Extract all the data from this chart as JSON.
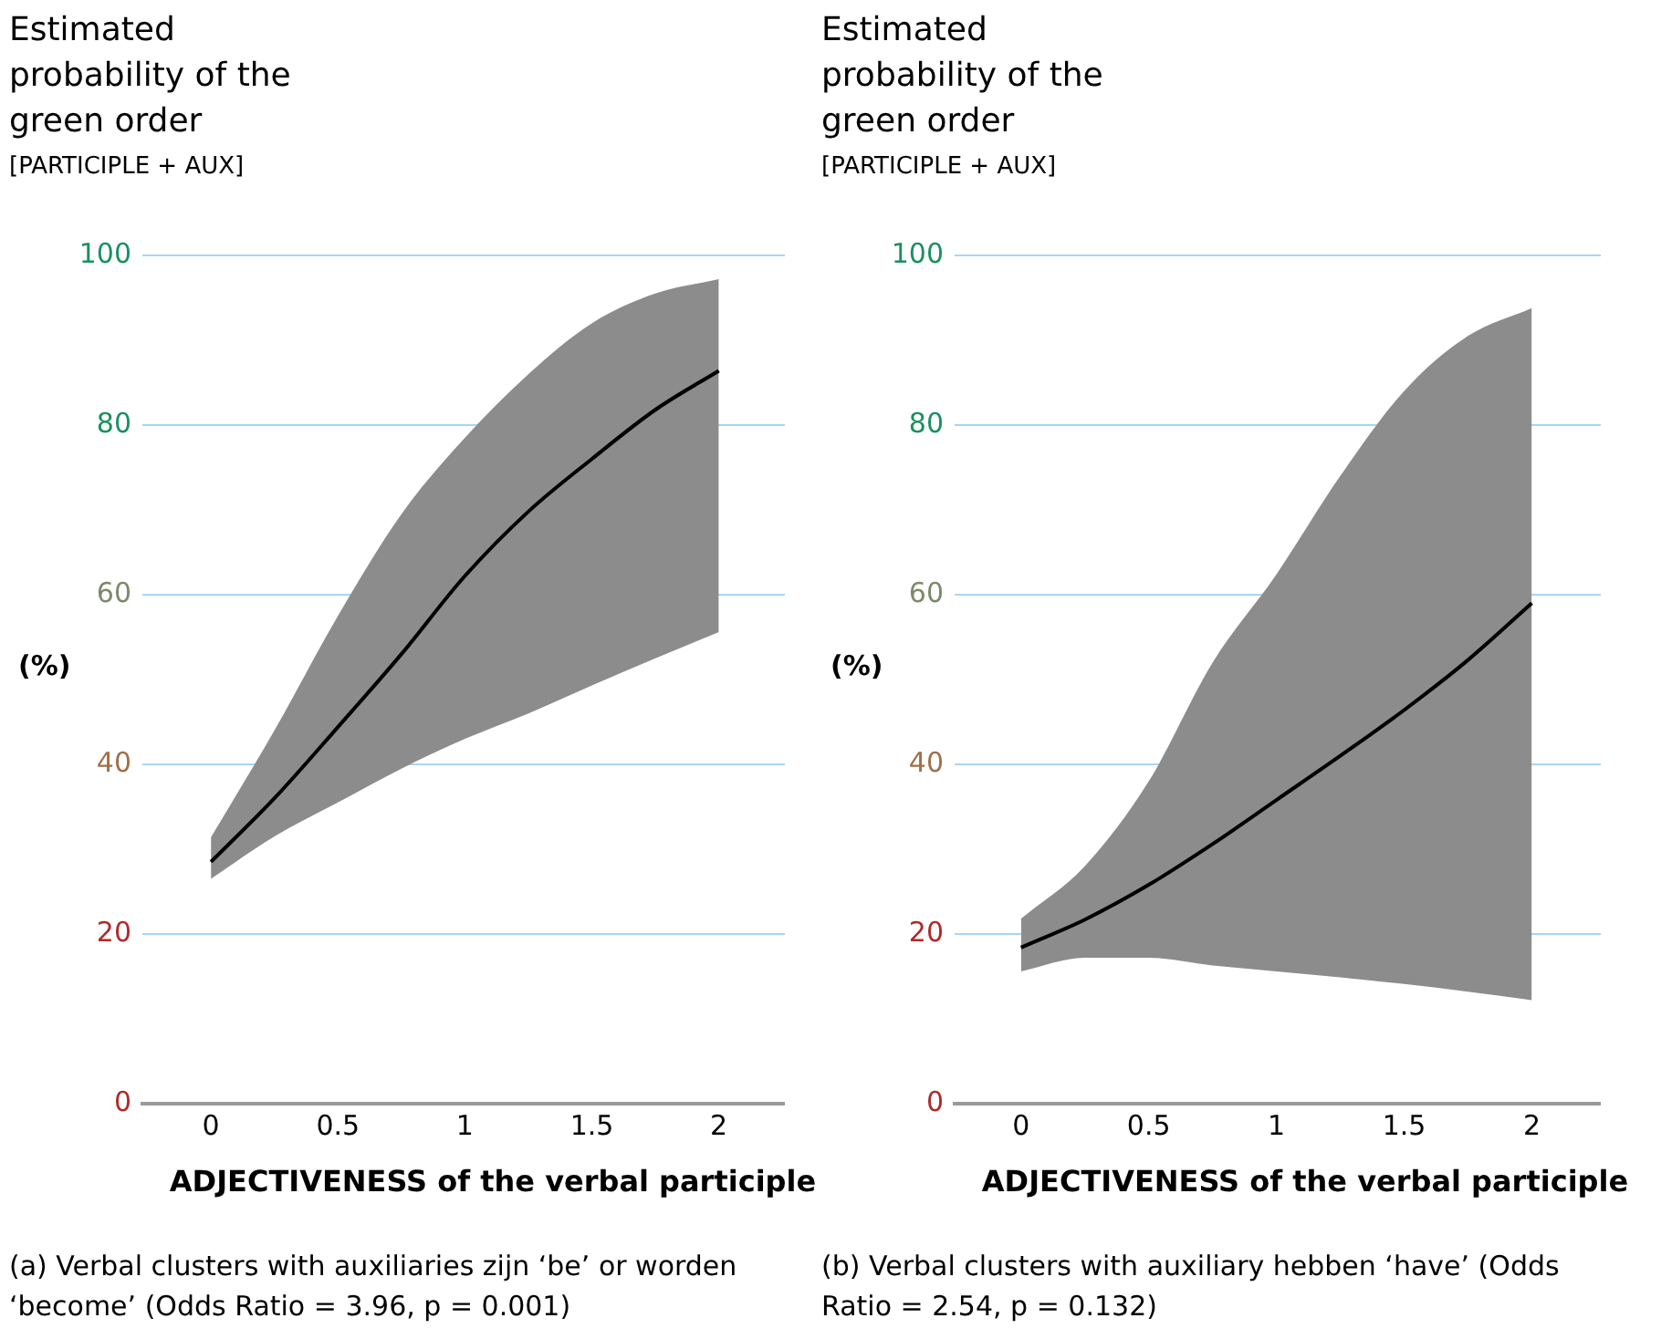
{
  "chart_data": [
    {
      "type": "line",
      "title": "Estimated probability of the green order",
      "subtitle": "[PARTICIPLE + AUX]",
      "xlabel": "ADJECTIVENESS of the verbal participle",
      "ylabel": "(%)",
      "annotations": [
        "(a) Verbal clusters with auxiliaries zijn ‘be’ or worden ‘become’ (Odds Ratio = 3.96, p = 0.001)"
      ],
      "x": [
        0,
        0.25,
        0.5,
        0.75,
        1,
        1.25,
        1.5,
        1.75,
        2
      ],
      "series": [
        {
          "color": "#000000",
          "values": [
            28.5,
            36,
            44.4,
            53,
            62.2,
            69.8,
            76,
            81.8,
            86.4
          ],
          "lower": [
            26.5,
            31.5,
            35.5,
            39.5,
            43,
            46,
            49.3,
            52.5,
            55.6
          ],
          "upper": [
            31.4,
            44,
            57.5,
            69.5,
            78.5,
            86,
            92,
            95.5,
            97.2
          ]
        }
      ],
      "xlim": [
        -0.27,
        2.26
      ],
      "xticks": [
        0,
        0.5,
        1,
        1.5,
        2
      ],
      "ylim": [
        0,
        100
      ],
      "yticks": [
        0,
        20,
        40,
        60,
        80,
        100
      ],
      "grid": "y",
      "legend": false,
      "marker": "none",
      "line_style": "solid"
    },
    {
      "type": "line",
      "title": "Estimated probability of the green order",
      "subtitle": "[PARTICIPLE + AUX]",
      "xlabel": "ADJECTIVENESS of the verbal participle",
      "ylabel": "(%)",
      "annotations": [
        "(b) Verbal clusters with auxiliary hebben ‘have’ (Odds Ratio = 2.54, p = 0.132)"
      ],
      "x": [
        0,
        0.25,
        0.5,
        0.75,
        1,
        1.25,
        1.5,
        1.75,
        2
      ],
      "series": [
        {
          "color": "#000000",
          "values": [
            18.4,
            21.7,
            25.8,
            30.6,
            35.8,
            41,
            46.4,
            52.3,
            59
          ],
          "lower": [
            15.6,
            17.2,
            17.2,
            16.3,
            15.6,
            14.9,
            14.1,
            13.2,
            12.2
          ],
          "upper": [
            21.8,
            28,
            38,
            52,
            62.4,
            74,
            84,
            90.5,
            93.8
          ]
        }
      ],
      "xlim": [
        -0.26,
        2.27
      ],
      "xticks": [
        0,
        0.5,
        1,
        1.5,
        2
      ],
      "ylim": [
        0,
        100
      ],
      "yticks": [
        0,
        20,
        40,
        60,
        80,
        100
      ],
      "grid": "y",
      "legend": false,
      "marker": "none",
      "line_style": "solid"
    }
  ]
}
